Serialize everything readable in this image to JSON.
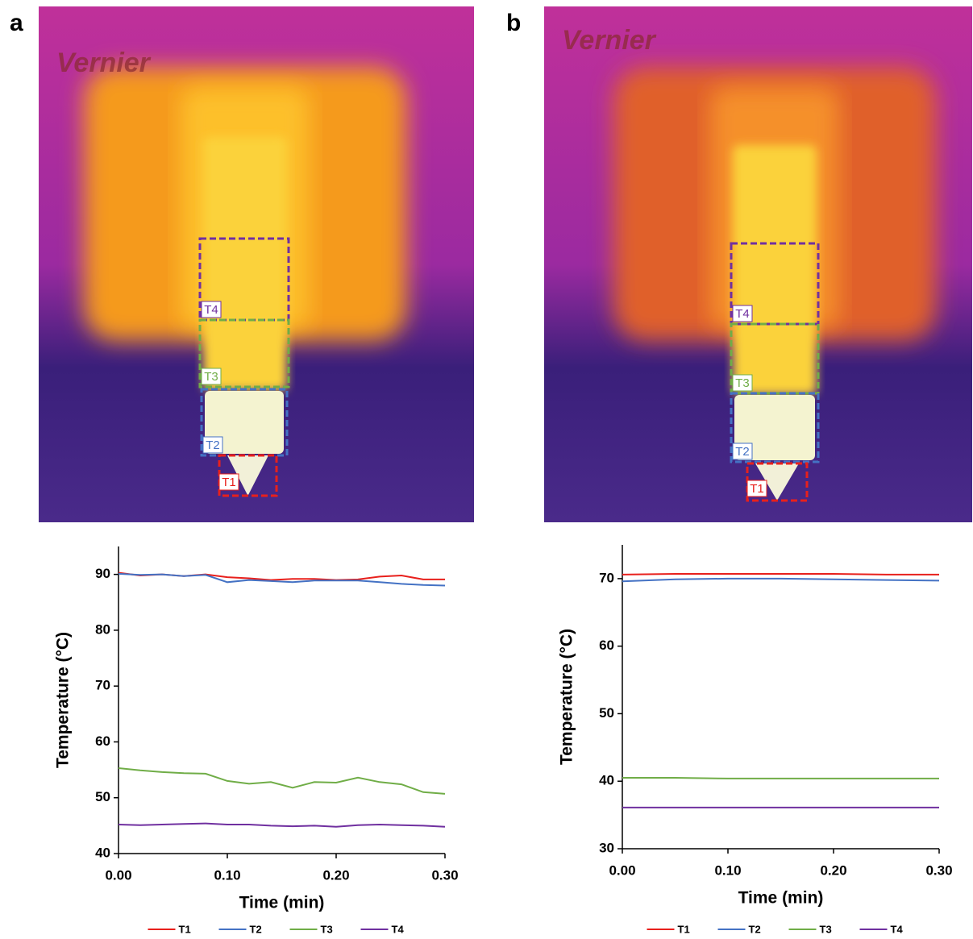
{
  "panels": [
    {
      "label": "a",
      "watermark": "Vernier",
      "regions": [
        "T4",
        "T3",
        "T2",
        "T1"
      ]
    },
    {
      "label": "b",
      "watermark": "Vernier",
      "regions": [
        "T4",
        "T3",
        "T2",
        "T1"
      ]
    }
  ],
  "chart_data": [
    {
      "type": "line",
      "x_label": "Time (min)",
      "y_label": "Temperature (°C)",
      "x": [
        0,
        0.02,
        0.04,
        0.06,
        0.08,
        0.1,
        0.12,
        0.14,
        0.16,
        0.18,
        0.2,
        0.22,
        0.24,
        0.26,
        0.28,
        0.3
      ],
      "series": [
        {
          "name": "T1",
          "color": "#e8201c",
          "values": [
            90.3,
            89.8,
            90.0,
            89.7,
            90.0,
            89.5,
            89.3,
            89.0,
            89.2,
            89.2,
            89.0,
            89.1,
            89.6,
            89.8,
            89.1,
            89.1
          ]
        },
        {
          "name": "T2",
          "color": "#4472c4",
          "values": [
            90.1,
            89.9,
            90.0,
            89.7,
            89.9,
            88.6,
            89.0,
            88.8,
            88.6,
            88.9,
            88.9,
            88.9,
            88.6,
            88.3,
            88.1,
            88.0
          ]
        },
        {
          "name": "T3",
          "color": "#70ad47",
          "values": [
            55.3,
            54.9,
            54.6,
            54.4,
            54.3,
            53.0,
            52.5,
            52.8,
            51.8,
            52.8,
            52.7,
            53.6,
            52.8,
            52.4,
            51.0,
            50.7
          ]
        },
        {
          "name": "T4",
          "color": "#7030a0",
          "values": [
            45.2,
            45.1,
            45.2,
            45.3,
            45.4,
            45.2,
            45.2,
            45.0,
            44.9,
            45.0,
            44.8,
            45.1,
            45.2,
            45.1,
            45.0,
            44.8
          ]
        }
      ],
      "xlim": [
        0,
        0.3
      ],
      "xticks": [
        {
          "value": 0,
          "label": "0.00"
        },
        {
          "value": 0.1,
          "label": "0.10"
        },
        {
          "value": 0.2,
          "label": "0.20"
        },
        {
          "value": 0.3,
          "label": "0.30"
        }
      ],
      "ylim": [
        40,
        95
      ],
      "yticks": [
        40,
        50,
        60,
        70,
        80,
        90
      ],
      "grid": false
    },
    {
      "type": "line",
      "x_label": "Time (min)",
      "y_label": "Temperature (°C)",
      "x": [
        0,
        0.05,
        0.1,
        0.15,
        0.2,
        0.25,
        0.3
      ],
      "series": [
        {
          "name": "T1",
          "color": "#e8201c",
          "values": [
            70.6,
            70.7,
            70.7,
            70.7,
            70.7,
            70.6,
            70.6
          ]
        },
        {
          "name": "T2",
          "color": "#4472c4",
          "values": [
            69.6,
            69.9,
            70.0,
            70.0,
            69.9,
            69.8,
            69.7
          ]
        },
        {
          "name": "T3",
          "color": "#70ad47",
          "values": [
            40.5,
            40.5,
            40.4,
            40.4,
            40.4,
            40.4,
            40.4
          ]
        },
        {
          "name": "T4",
          "color": "#7030a0",
          "values": [
            36.1,
            36.1,
            36.1,
            36.1,
            36.1,
            36.1,
            36.1
          ]
        }
      ],
      "xlim": [
        0,
        0.3
      ],
      "xticks": [
        {
          "value": 0,
          "label": "0.00"
        },
        {
          "value": 0.1,
          "label": "0.10"
        },
        {
          "value": 0.2,
          "label": "0.20"
        },
        {
          "value": 0.3,
          "label": "0.30"
        }
      ],
      "ylim": [
        30,
        75
      ],
      "yticks": [
        30,
        40,
        50,
        60,
        70
      ],
      "grid": false
    }
  ]
}
